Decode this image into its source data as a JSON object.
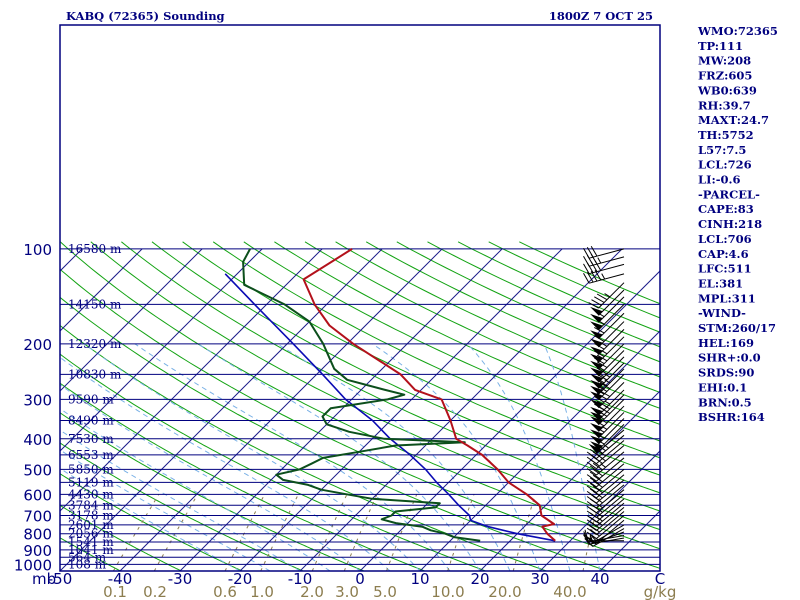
{
  "header": {
    "station": "KABQ (72365) Sounding",
    "time": "1800Z  7 OCT 25",
    "x_unit": "mb",
    "mix_unit": "g/kg"
  },
  "indices": [
    "WMO:72365",
    "TP:111",
    "MW:208",
    "FRZ:605",
    "WB0:639",
    "RH:39.7",
    "MAXT:24.7",
    "TH:5752",
    "L57:7.5",
    "LCL:726",
    "LI:-0.6",
    "-PARCEL-",
    "CAPE:83",
    "CINH:218",
    "LCL:706",
    "CAP:4.6",
    "LFC:511",
    "EL:381",
    "MPL:311",
    "-WIND-",
    "STM:260/17",
    "HEL:169",
    "SHR+:0.0",
    "SRDS:90",
    "EHI:0.1",
    "BRN:0.5",
    "BSHR:164"
  ],
  "colors": {
    "frame": "#00007f",
    "isobar": "#00007f",
    "isotherm": "#1c1c8a",
    "dry_adiabat": "#13a313",
    "moist_adiabat": "#7ab1e6",
    "mixing_ratio": "#8c7d4f",
    "temperature": "#b3111b",
    "dewpoint": "#0c4f1c",
    "parcel": "#0b0bb4",
    "text": "#00007f",
    "mix_text": "#8c7d4f",
    "wind": "#000000"
  },
  "chart_data": {
    "type": "line",
    "title": "KABQ (72365) Sounding",
    "xlabel": "",
    "ylabel": "mb",
    "temperature_ticks": [
      -50,
      -40,
      -30,
      -20,
      -10,
      0,
      10,
      20,
      30,
      40
    ],
    "temperature_tick_labels": [
      "-50",
      "-40",
      "-30",
      "-20",
      "-10",
      "0",
      "10",
      "20",
      "30",
      "40"
    ],
    "temperature_extra_tick": "C",
    "temperature_range": [
      -50,
      50
    ],
    "pressure_ticks": [
      100,
      200,
      300,
      400,
      500,
      600,
      700,
      800,
      900,
      1000
    ],
    "pressure_tick_labels": [
      "100",
      "200",
      "300",
      "400",
      "500",
      "600",
      "700",
      "800",
      "900",
      "1000"
    ],
    "pressure_range": [
      1050,
      100
    ],
    "height_labels": [
      {
        "p": 100,
        "text": "16580 m"
      },
      {
        "p": 150,
        "text": "14150 m"
      },
      {
        "p": 200,
        "text": "12320 m"
      },
      {
        "p": 250,
        "text": "10830 m"
      },
      {
        "p": 300,
        "text": "9590 m"
      },
      {
        "p": 350,
        "text": "8490 m"
      },
      {
        "p": 400,
        "text": "7530 m"
      },
      {
        "p": 450,
        "text": "6553 m"
      },
      {
        "p": 500,
        "text": "5850 m"
      },
      {
        "p": 550,
        "text": "5119 m"
      },
      {
        "p": 600,
        "text": "4430 m"
      },
      {
        "p": 650,
        "text": "3784 m"
      },
      {
        "p": 700,
        "text": "3178 m"
      },
      {
        "p": 750,
        "text": "2601 m"
      },
      {
        "p": 800,
        "text": "2056 m"
      },
      {
        "p": 850,
        "text": "1541 m"
      },
      {
        "p": 900,
        "text": "1041 m"
      },
      {
        "p": 950,
        "text": "564 m"
      },
      {
        "p": 1000,
        "text": "108 m"
      }
    ],
    "mixing_ratio_labels": [
      "0.1",
      "0.2",
      "0.6",
      "1.0",
      "2.0",
      "3.0",
      "5.0",
      "10.0",
      "20.0",
      "40.0"
    ],
    "mixing_ratio_values": [
      0.1,
      0.2,
      0.6,
      1.0,
      2.0,
      3.0,
      5.0,
      10.0,
      20.0,
      40.0
    ],
    "series": [
      {
        "key": "temperature",
        "points": [
          [
            842,
            27.5
          ],
          [
            800,
            25
          ],
          [
            760,
            23
          ],
          [
            745,
            24.5
          ],
          [
            700,
            21
          ],
          [
            650,
            19
          ],
          [
            600,
            15
          ],
          [
            550,
            10
          ],
          [
            500,
            6
          ],
          [
            450,
            1
          ],
          [
            420,
            -3
          ],
          [
            400,
            -6
          ],
          [
            350,
            -10
          ],
          [
            300,
            -15
          ],
          [
            280,
            -21
          ],
          [
            250,
            -26
          ],
          [
            200,
            -39
          ],
          [
            175,
            -46
          ],
          [
            150,
            -52
          ],
          [
            125,
            -58
          ],
          [
            100,
            -55
          ]
        ]
      },
      {
        "key": "dewpoint",
        "points": [
          [
            842,
            15
          ],
          [
            820,
            10
          ],
          [
            800,
            8
          ],
          [
            780,
            5
          ],
          [
            760,
            3
          ],
          [
            740,
            -2
          ],
          [
            720,
            -5
          ],
          [
            700,
            -4
          ],
          [
            680,
            -4
          ],
          [
            660,
            2
          ],
          [
            640,
            2
          ],
          [
            620,
            -10
          ],
          [
            600,
            -15
          ],
          [
            580,
            -20
          ],
          [
            560,
            -23
          ],
          [
            540,
            -28
          ],
          [
            520,
            -30
          ],
          [
            500,
            -27
          ],
          [
            480,
            -26
          ],
          [
            460,
            -25
          ],
          [
            440,
            -20
          ],
          [
            420,
            -15
          ],
          [
            410,
            -4
          ],
          [
            400,
            -18
          ],
          [
            380,
            -25
          ],
          [
            360,
            -30
          ],
          [
            340,
            -32
          ],
          [
            320,
            -32
          ],
          [
            300,
            -24
          ],
          [
            290,
            -22
          ],
          [
            280,
            -26
          ],
          [
            260,
            -34
          ],
          [
            240,
            -38
          ],
          [
            200,
            -44
          ],
          [
            170,
            -50
          ],
          [
            150,
            -57
          ],
          [
            130,
            -67
          ],
          [
            110,
            -71
          ],
          [
            100,
            -72
          ]
        ]
      },
      {
        "key": "parcel",
        "points": [
          [
            842,
            27.5
          ],
          [
            800,
            20
          ],
          [
            760,
            14
          ],
          [
            726,
            10
          ],
          [
            700,
            9
          ],
          [
            650,
            5.5
          ],
          [
            600,
            2
          ],
          [
            550,
            -2
          ],
          [
            500,
            -6
          ],
          [
            450,
            -11
          ],
          [
            400,
            -17
          ],
          [
            350,
            -23
          ],
          [
            300,
            -31
          ],
          [
            250,
            -39
          ],
          [
            200,
            -49
          ],
          [
            150,
            -62
          ],
          [
            120,
            -72
          ]
        ]
      }
    ],
    "wind_barbs": [
      {
        "p": 842,
        "dir": 270,
        "spd": 15
      },
      {
        "p": 825,
        "dir": 260,
        "spd": 15
      },
      {
        "p": 810,
        "dir": 260,
        "spd": 15
      },
      {
        "p": 790,
        "dir": 250,
        "spd": 15
      },
      {
        "p": 770,
        "dir": 240,
        "spd": 15
      },
      {
        "p": 750,
        "dir": 240,
        "spd": 15
      },
      {
        "p": 725,
        "dir": 230,
        "spd": 20
      },
      {
        "p": 700,
        "dir": 230,
        "spd": 20
      },
      {
        "p": 680,
        "dir": 230,
        "spd": 20
      },
      {
        "p": 660,
        "dir": 230,
        "spd": 25
      },
      {
        "p": 640,
        "dir": 230,
        "spd": 25
      },
      {
        "p": 620,
        "dir": 230,
        "spd": 25
      },
      {
        "p": 600,
        "dir": 230,
        "spd": 25
      },
      {
        "p": 580,
        "dir": 230,
        "spd": 25
      },
      {
        "p": 560,
        "dir": 230,
        "spd": 30
      },
      {
        "p": 540,
        "dir": 230,
        "spd": 30
      },
      {
        "p": 520,
        "dir": 230,
        "spd": 30
      },
      {
        "p": 500,
        "dir": 230,
        "spd": 30
      },
      {
        "p": 480,
        "dir": 230,
        "spd": 30
      },
      {
        "p": 460,
        "dir": 230,
        "spd": 30
      },
      {
        "p": 440,
        "dir": 230,
        "spd": 35
      },
      {
        "p": 420,
        "dir": 230,
        "spd": 35
      },
      {
        "p": 405,
        "dir": 230,
        "spd": 40
      },
      {
        "p": 390,
        "dir": 230,
        "spd": 45
      },
      {
        "p": 375,
        "dir": 230,
        "spd": 50
      },
      {
        "p": 360,
        "dir": 225,
        "spd": 55
      },
      {
        "p": 345,
        "dir": 225,
        "spd": 60
      },
      {
        "p": 330,
        "dir": 225,
        "spd": 65
      },
      {
        "p": 315,
        "dir": 225,
        "spd": 70
      },
      {
        "p": 300,
        "dir": 225,
        "spd": 75
      },
      {
        "p": 290,
        "dir": 225,
        "spd": 75
      },
      {
        "p": 280,
        "dir": 225,
        "spd": 75
      },
      {
        "p": 265,
        "dir": 225,
        "spd": 80
      },
      {
        "p": 250,
        "dir": 225,
        "spd": 80
      },
      {
        "p": 240,
        "dir": 225,
        "spd": 75
      },
      {
        "p": 230,
        "dir": 225,
        "spd": 75
      },
      {
        "p": 220,
        "dir": 225,
        "spd": 70
      },
      {
        "p": 210,
        "dir": 225,
        "spd": 70
      },
      {
        "p": 200,
        "dir": 225,
        "spd": 70
      },
      {
        "p": 190,
        "dir": 225,
        "spd": 65
      },
      {
        "p": 180,
        "dir": 225,
        "spd": 65
      },
      {
        "p": 170,
        "dir": 225,
        "spd": 60
      },
      {
        "p": 160,
        "dir": 225,
        "spd": 60
      },
      {
        "p": 150,
        "dir": 225,
        "spd": 55
      },
      {
        "p": 142,
        "dir": 225,
        "spd": 55
      },
      {
        "p": 135,
        "dir": 225,
        "spd": 50
      },
      {
        "p": 128,
        "dir": 225,
        "spd": 45
      },
      {
        "p": 120,
        "dir": 255,
        "spd": 45
      },
      {
        "p": 112,
        "dir": 255,
        "spd": 40
      },
      {
        "p": 106,
        "dir": 255,
        "spd": 35
      },
      {
        "p": 100,
        "dir": 255,
        "spd": 30
      }
    ]
  }
}
